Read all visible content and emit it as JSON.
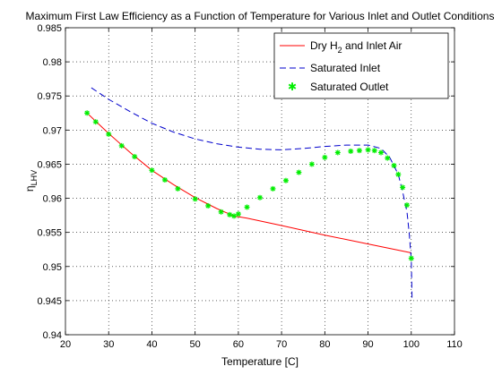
{
  "chart_data": {
    "type": "line",
    "title": "Maximum First Law Efficiency as a Function of Temperature for Various Inlet and Outlet Conditions",
    "xlabel": "Temperature [C]",
    "ylabel_main": "η",
    "ylabel_sub": "LHV",
    "xlim": [
      20,
      110
    ],
    "ylim": [
      0.94,
      0.985
    ],
    "x_ticks": [
      20,
      30,
      40,
      50,
      60,
      70,
      80,
      90,
      100,
      110
    ],
    "y_ticks": [
      "0.94",
      "0.945",
      "0.95",
      "0.955",
      "0.96",
      "0.965",
      "0.97",
      "0.975",
      "0.98",
      "0.985"
    ],
    "grid": true,
    "legend": {
      "placement": "top-right",
      "entries": [
        {
          "main": "Dry H",
          "sub": "2",
          "rest": " and Inlet Air"
        },
        {
          "main": "Saturated Inlet",
          "sub": "",
          "rest": ""
        },
        {
          "main": "Saturated Outlet",
          "sub": "",
          "rest": ""
        }
      ]
    },
    "series": [
      {
        "name": "Dry H2 and Inlet Air",
        "color": "#ff0000",
        "style": "solid",
        "x": [
          25,
          30,
          35,
          40,
          45,
          50,
          55,
          59,
          62,
          70,
          80,
          90,
          100
        ],
        "y": [
          0.9725,
          0.9695,
          0.9667,
          0.9641,
          0.962,
          0.9601,
          0.9585,
          0.9574,
          0.9571,
          0.956,
          0.9546,
          0.9533,
          0.952
        ]
      },
      {
        "name": "Saturated Inlet",
        "color": "#0000cc",
        "style": "dashed",
        "x": [
          26,
          30,
          35,
          40,
          45,
          50,
          55,
          60,
          65,
          70,
          75,
          80,
          85,
          90,
          93,
          95,
          97,
          98,
          99,
          99.5,
          100,
          100.2
        ],
        "y": [
          0.9762,
          0.9745,
          0.9727,
          0.971,
          0.9697,
          0.9687,
          0.968,
          0.9675,
          0.9672,
          0.9671,
          0.9673,
          0.9676,
          0.9678,
          0.9678,
          0.9673,
          0.966,
          0.9635,
          0.961,
          0.958,
          0.955,
          0.951,
          0.945
        ]
      },
      {
        "name": "Saturated Outlet",
        "color": "#00ee00",
        "style": "markers",
        "x": [
          25,
          27,
          30,
          33,
          36,
          40,
          43,
          46,
          50,
          53,
          56,
          58,
          59,
          60,
          62,
          65,
          68,
          71,
          74,
          77,
          80,
          83,
          86,
          88,
          90,
          91.5,
          93,
          94.5,
          96,
          97,
          98,
          99,
          100
        ],
        "y": [
          0.9725,
          0.9712,
          0.9694,
          0.9677,
          0.9661,
          0.9641,
          0.9627,
          0.9614,
          0.9599,
          0.9589,
          0.958,
          0.9576,
          0.9574,
          0.9577,
          0.9587,
          0.9601,
          0.9614,
          0.9626,
          0.9638,
          0.965,
          0.966,
          0.9667,
          0.9669,
          0.967,
          0.9671,
          0.967,
          0.9667,
          0.9659,
          0.9648,
          0.9635,
          0.9616,
          0.959,
          0.9512
        ]
      }
    ]
  }
}
